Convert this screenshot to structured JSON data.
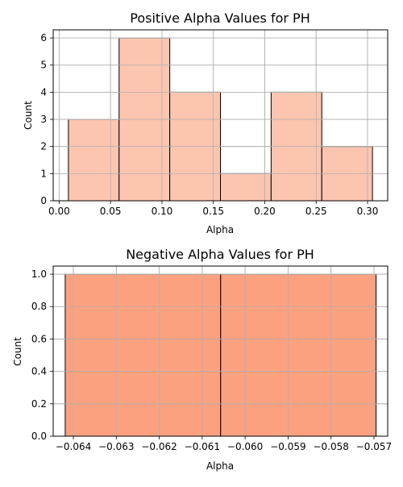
{
  "chart_data": [
    {
      "type": "bar",
      "title": "Positive Alpha Values for PH",
      "xlabel": "Alpha",
      "ylabel": "Count",
      "bin_edges": [
        0.009,
        0.0583,
        0.1076,
        0.1569,
        0.2062,
        0.2555,
        0.3048
      ],
      "values": [
        3,
        6,
        4,
        1,
        4,
        2
      ],
      "xlim": [
        -0.0058,
        0.3196
      ],
      "ylim": [
        0,
        6.3
      ],
      "x_ticks": [
        0.0,
        0.05,
        0.1,
        0.15,
        0.2,
        0.25,
        0.3
      ],
      "x_tick_labels": [
        "0.00",
        "0.05",
        "0.10",
        "0.15",
        "0.20",
        "0.25",
        "0.30"
      ],
      "y_ticks": [
        0,
        1,
        2,
        3,
        4,
        5,
        6
      ],
      "y_tick_labels": [
        "0",
        "1",
        "2",
        "3",
        "4",
        "5",
        "6"
      ],
      "bar_color": "#fcc5b0",
      "grid": true
    },
    {
      "type": "bar",
      "title": "Negative Alpha Values for PH",
      "xlabel": "Alpha",
      "ylabel": "Count",
      "bin_edges": [
        -0.06419,
        -0.06057,
        -0.05695
      ],
      "values": [
        1,
        1
      ],
      "xlim": [
        -0.06447,
        -0.05668
      ],
      "ylim": [
        0,
        1.05
      ],
      "x_ticks": [
        -0.064,
        -0.063,
        -0.062,
        -0.061,
        -0.06,
        -0.059,
        -0.058,
        -0.057
      ],
      "x_tick_labels": [
        "−0.064",
        "−0.063",
        "−0.062",
        "−0.061",
        "−0.060",
        "−0.059",
        "−0.058",
        "−0.057"
      ],
      "y_ticks": [
        0,
        0.2,
        0.4,
        0.6,
        0.8,
        1.0
      ],
      "y_tick_labels": [
        "0.0",
        "0.2",
        "0.4",
        "0.6",
        "0.8",
        "1.0"
      ],
      "bar_color": "#fca17f",
      "grid": true
    }
  ]
}
